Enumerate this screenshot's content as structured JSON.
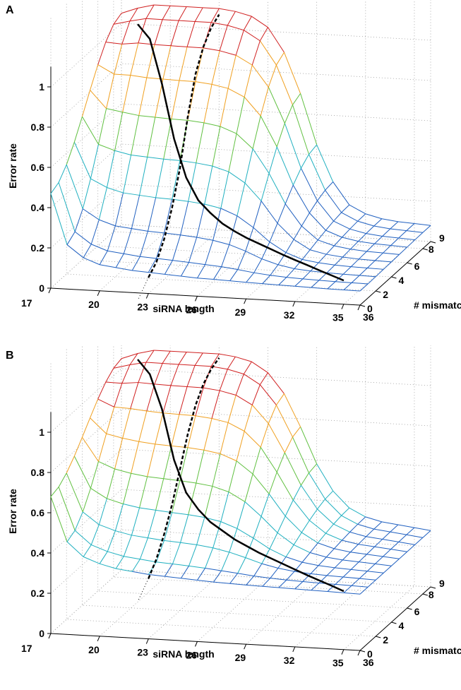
{
  "chart_data": [
    {
      "panel": "A",
      "type": "surface",
      "xlabel": "siRNA length",
      "ylabel": "# mismatch",
      "zlabel": "Error rate",
      "x_ticks": [
        17,
        20,
        23,
        26,
        29,
        32,
        35,
        36
      ],
      "y_ticks": [
        0,
        2,
        4,
        6,
        8,
        9
      ],
      "z_ticks": [
        0,
        0.2,
        0.4,
        0.6,
        0.8,
        1
      ],
      "xlim": [
        17,
        36
      ],
      "ylim": [
        0,
        9
      ],
      "zlim": [
        0,
        1.1
      ],
      "grid": true,
      "colormap": "jet",
      "x": [
        17,
        18,
        19,
        20,
        21,
        22,
        23,
        24,
        25,
        26,
        27,
        28,
        29,
        30,
        31,
        32,
        33,
        34,
        35,
        36
      ],
      "mismatch": [
        0,
        1,
        2,
        3,
        4,
        5,
        6,
        7,
        8,
        9
      ],
      "surface_edge_mismatch0": [
        0.47,
        0.22,
        0.16,
        0.13,
        0.12,
        0.11,
        0.105,
        0.1,
        0.095,
        0.09,
        0.088,
        0.085,
        0.082,
        0.08,
        0.078,
        0.076,
        0.074,
        0.072,
        0.071,
        0.07
      ],
      "surface_edge_mismatch9": [
        1.05,
        1.08,
        1.1,
        1.1,
        1.1,
        1.1,
        1.1,
        1.09,
        1.07,
        1.02,
        0.9,
        0.7,
        0.45,
        0.27,
        0.16,
        0.12,
        0.1,
        0.09,
        0.085,
        0.08
      ],
      "series": [
        {
          "line": "solid",
          "x": [
            18,
            19,
            20,
            21,
            22,
            23,
            24,
            25,
            26,
            27,
            28,
            29,
            30,
            31,
            32,
            33,
            34,
            35
          ],
          "y": [
            1.0,
            0.95,
            0.75,
            0.5,
            0.33,
            0.24,
            0.2,
            0.17,
            0.155,
            0.145,
            0.14,
            0.135,
            0.13,
            0.127,
            0.125,
            0.122,
            0.12,
            0.118
          ]
        },
        {
          "line": "dashed",
          "mismatch": [
            0,
            1,
            2,
            3,
            4,
            5,
            6,
            7,
            8,
            9
          ],
          "z": [
            0.08,
            0.12,
            0.2,
            0.32,
            0.48,
            0.7,
            0.88,
            0.98,
            1.04,
            1.07
          ]
        }
      ]
    },
    {
      "panel": "B",
      "type": "surface",
      "xlabel": "siRNA length",
      "ylabel": "# mismatch",
      "zlabel": "Error rate",
      "x_ticks": [
        17,
        20,
        23,
        26,
        29,
        32,
        35,
        36
      ],
      "y_ticks": [
        0,
        2,
        4,
        6,
        8,
        9
      ],
      "z_ticks": [
        0,
        0.2,
        0.4,
        0.6,
        0.8,
        1
      ],
      "xlim": [
        17,
        36
      ],
      "ylim": [
        0,
        9
      ],
      "zlim": [
        0,
        1.1
      ],
      "grid": true,
      "colormap": "jet",
      "x": [
        17,
        18,
        19,
        20,
        21,
        22,
        23,
        24,
        25,
        26,
        27,
        28,
        29,
        30,
        31,
        32,
        33,
        34,
        35,
        36
      ],
      "mismatch": [
        0,
        1,
        2,
        3,
        4,
        5,
        6,
        7,
        8,
        9
      ],
      "surface_edge_mismatch0": [
        0.68,
        0.46,
        0.39,
        0.36,
        0.34,
        0.33,
        0.32,
        0.315,
        0.31,
        0.305,
        0.3,
        0.297,
        0.294,
        0.292,
        0.29,
        0.288,
        0.286,
        0.284,
        0.282,
        0.28
      ],
      "surface_edge_mismatch9": [
        1.05,
        1.08,
        1.1,
        1.1,
        1.1,
        1.1,
        1.1,
        1.09,
        1.07,
        1.02,
        0.92,
        0.76,
        0.58,
        0.45,
        0.37,
        0.33,
        0.31,
        0.3,
        0.29,
        0.28
      ],
      "series": [
        {
          "line": "solid",
          "x": [
            18,
            19,
            20,
            21,
            22,
            23,
            24,
            25,
            26,
            27,
            28,
            29,
            30,
            31,
            32,
            33,
            34,
            35
          ],
          "y": [
            1.05,
            1.0,
            0.85,
            0.62,
            0.48,
            0.42,
            0.38,
            0.36,
            0.34,
            0.33,
            0.32,
            0.315,
            0.31,
            0.305,
            0.3,
            0.297,
            0.294,
            0.29
          ]
        },
        {
          "line": "dashed",
          "mismatch": [
            0,
            1,
            2,
            3,
            4,
            5,
            6,
            7,
            8,
            9
          ],
          "z": [
            0.3,
            0.36,
            0.45,
            0.56,
            0.7,
            0.84,
            0.95,
            1.02,
            1.06,
            1.08
          ]
        }
      ]
    }
  ],
  "colors": {
    "hot": "#d02020",
    "warm": "#f0a020",
    "mid": "#60c040",
    "cool": "#20b0c0",
    "cold": "#2060c0",
    "curve": "#000000",
    "grid": "#9a9a9a"
  }
}
